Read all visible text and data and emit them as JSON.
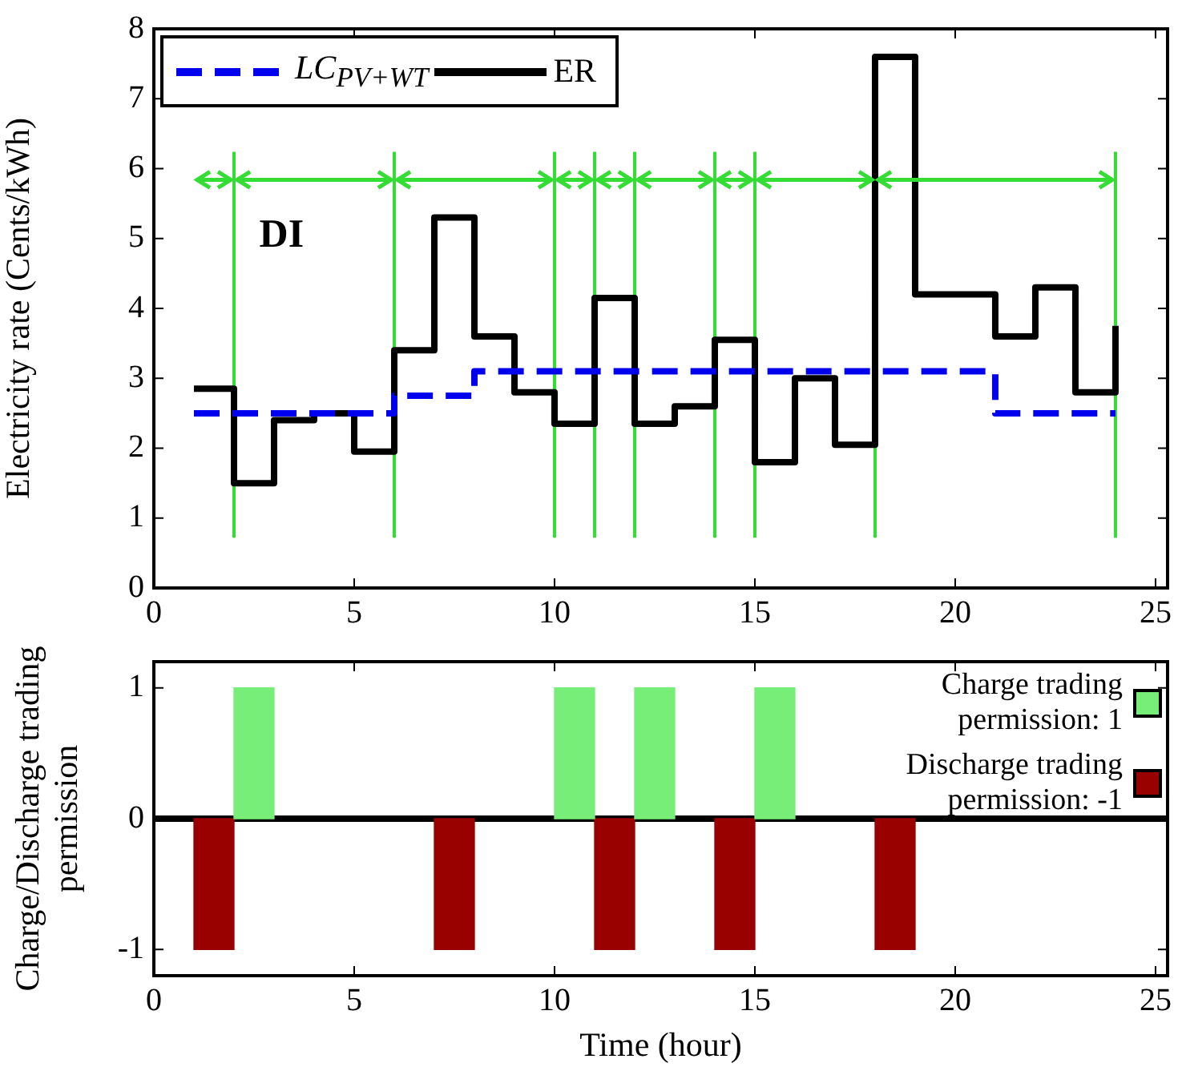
{
  "chart_data": [
    {
      "type": "step",
      "ylabel": "Electricity rate (Cents/kWh)",
      "x": [
        1,
        2,
        3,
        4,
        5,
        6,
        7,
        8,
        9,
        10,
        11,
        12,
        13,
        14,
        15,
        16,
        17,
        18,
        19,
        20,
        21,
        22,
        23,
        24
      ],
      "series": [
        {
          "name": "LC$_{PV+WT}$",
          "color": "#0000ee",
          "line_style": "dashed",
          "values": [
            2.5,
            2.5,
            2.5,
            2.5,
            2.5,
            2.75,
            2.75,
            3.1,
            3.1,
            3.1,
            3.1,
            3.1,
            3.1,
            3.1,
            3.1,
            3.1,
            3.1,
            3.1,
            3.1,
            3.1,
            2.5,
            2.5,
            2.5,
            2.5
          ]
        },
        {
          "name": "ER",
          "color": "#000000",
          "line_style": "solid",
          "values": [
            2.85,
            1.5,
            2.4,
            2.5,
            1.95,
            3.4,
            5.3,
            3.6,
            2.8,
            2.35,
            4.15,
            2.35,
            2.6,
            3.55,
            1.8,
            3.0,
            2.05,
            7.6,
            4.2,
            4.2,
            3.6,
            4.3,
            2.8,
            3.75
          ]
        }
      ],
      "xlim": [
        0,
        25.3
      ],
      "xticks": [
        0,
        5,
        10,
        15,
        20,
        25
      ],
      "ylim": [
        0,
        8
      ],
      "yticks": [
        0,
        1,
        2,
        3,
        4,
        5,
        6,
        7,
        8
      ],
      "ref_lines": [
        {
          "axis": "x",
          "value": 2,
          "color": "#33dd33"
        },
        {
          "axis": "x",
          "value": 6,
          "color": "#33dd33"
        },
        {
          "axis": "x",
          "value": 10,
          "color": "#33dd33"
        },
        {
          "axis": "x",
          "value": 11,
          "color": "#33dd33"
        },
        {
          "axis": "x",
          "value": 12,
          "color": "#33dd33"
        },
        {
          "axis": "x",
          "value": 14,
          "color": "#33dd33"
        },
        {
          "axis": "x",
          "value": 15,
          "color": "#33dd33"
        },
        {
          "axis": "x",
          "value": 18,
          "color": "#33dd33"
        },
        {
          "axis": "x",
          "value": 24,
          "color": "#33dd33"
        }
      ],
      "annotations": [
        {
          "text": "DI",
          "x": 2,
          "y": 5.05
        }
      ],
      "legend": "top left"
    },
    {
      "type": "bar",
      "xlabel": "Time (hour)",
      "ylabel": "Charge/Discharge trading permission",
      "series": [
        {
          "name": "Charge trading permission: 1",
          "color": "#77ee77",
          "x": [
            2.5,
            10.5,
            12.5,
            15.5
          ],
          "values": [
            1,
            1,
            1,
            1
          ]
        },
        {
          "name": "Discharge trading permission: -1",
          "color": "#990000",
          "x": [
            1.5,
            7.5,
            11.5,
            14.5,
            18.5
          ],
          "values": [
            -1,
            -1,
            -1,
            -1,
            -1
          ]
        }
      ],
      "xlim": [
        0,
        25.3
      ],
      "xticks": [
        0,
        5,
        10,
        15,
        20,
        25
      ],
      "ylim": [
        -1.2,
        1.2
      ],
      "yticks": [
        -1,
        0,
        1
      ],
      "ref_lines": [
        {
          "axis": "y",
          "value": 0,
          "color": "#000000"
        }
      ],
      "legend": "top right"
    }
  ]
}
